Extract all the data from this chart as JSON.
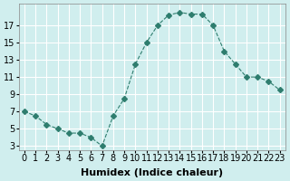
{
  "x": [
    0,
    1,
    2,
    3,
    4,
    5,
    6,
    7,
    8,
    9,
    10,
    11,
    12,
    13,
    14,
    15,
    16,
    17,
    18,
    19,
    20,
    21,
    22,
    23
  ],
  "y": [
    7,
    6.5,
    5.5,
    5,
    4.5,
    4.5,
    4,
    3,
    6.5,
    8.5,
    12.5,
    15,
    17,
    18.2,
    18.5,
    18.3,
    18.3,
    17,
    14,
    12.5,
    11,
    11,
    10.5,
    9.5
  ],
  "line_color": "#2e7d6e",
  "marker": "D",
  "marker_size": 3,
  "line_width": 0.8,
  "bg_color": "#d0eeee",
  "grid_color": "#ffffff",
  "xlabel": "Humidex (Indice chaleur)",
  "xlabel_fontsize": 8,
  "yticks": [
    3,
    5,
    7,
    9,
    11,
    13,
    15,
    17
  ],
  "xticks": [
    0,
    1,
    2,
    3,
    4,
    5,
    6,
    7,
    8,
    9,
    10,
    11,
    12,
    13,
    14,
    15,
    16,
    17,
    18,
    19,
    20,
    21,
    22,
    23
  ],
  "ylim": [
    2.5,
    19.5
  ],
  "xlim": [
    -0.5,
    23.5
  ],
  "tick_fontsize": 7
}
